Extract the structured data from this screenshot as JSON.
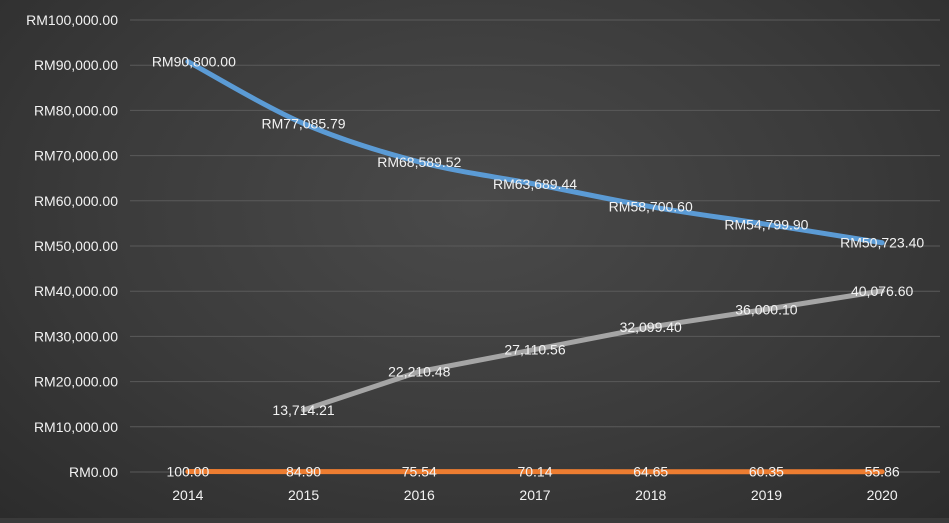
{
  "chart_data": {
    "type": "line",
    "title": "",
    "xlabel": "",
    "ylabel": "",
    "ylim": [
      0,
      100000
    ],
    "y_tick_step": 10000,
    "y_tick_format": "RM{value}",
    "grid": true,
    "legend": "none",
    "categories": [
      "2014",
      "2015",
      "2016",
      "2017",
      "2018",
      "2019",
      "2020"
    ],
    "series": [
      {
        "color": "#5b9bd5",
        "smooth": true,
        "values": [
          90800.0,
          77085.79,
          68589.52,
          63689.44,
          58700.6,
          54799.9,
          50723.4
        ],
        "labels": [
          "RM90,800.00",
          "RM77,085.79",
          "RM68,589.52",
          "RM63,689.44",
          "RM58,700.60",
          "RM54,799.90",
          "RM50,723.40"
        ]
      },
      {
        "color": "#a5a5a5",
        "smooth": false,
        "values": [
          null,
          13714.21,
          22210.48,
          27110.56,
          32099.4,
          36000.1,
          40076.6
        ],
        "labels": [
          null,
          "13,714.21",
          "22,210.48",
          "27,110.56",
          "32,099.40",
          "36,000.10",
          "40,076.60"
        ]
      },
      {
        "color": "#ed7d31",
        "smooth": false,
        "values": [
          100.0,
          84.9,
          75.54,
          70.14,
          64.65,
          60.35,
          55.86
        ],
        "labels": [
          "100.00",
          "84.90",
          "75.54",
          "70.14",
          "64.65",
          "60.35",
          "55.86"
        ]
      }
    ],
    "y_tick_labels": [
      "RM0.00",
      "RM10,000.00",
      "RM20,000.00",
      "RM30,000.00",
      "RM40,000.00",
      "RM50,000.00",
      "RM60,000.00",
      "RM70,000.00",
      "RM80,000.00",
      "RM90,000.00",
      "RM100,000.00"
    ]
  }
}
